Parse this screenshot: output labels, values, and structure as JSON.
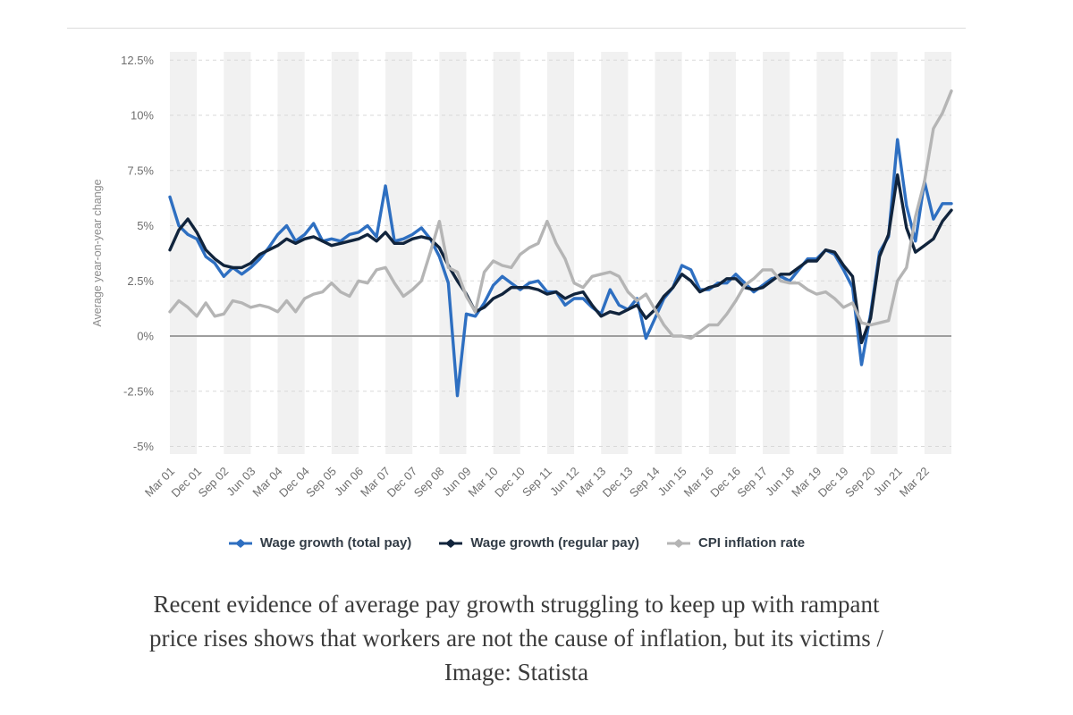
{
  "chart_data": {
    "type": "line",
    "title": "",
    "xlabel": "",
    "ylabel": "Average year-on-year change",
    "ylim": [
      -5,
      12.5
    ],
    "yticks": [
      12.5,
      10,
      7.5,
      5,
      2.5,
      0,
      -2.5,
      -5
    ],
    "ytick_labels": [
      "12.5%",
      "10%",
      "7.5%",
      "5%",
      "2.5%",
      "0%",
      "-2.5%",
      "-5%"
    ],
    "x_tick_labels": [
      "Mar 01",
      "Dec 01",
      "Sep 02",
      "Jun 03",
      "Mar 04",
      "Dec 04",
      "Sep 05",
      "Jun 06",
      "Mar 07",
      "Dec 07",
      "Sep 08",
      "Jun 09",
      "Mar 10",
      "Dec 10",
      "Sep 11",
      "Jun 12",
      "Mar 13",
      "Dec 13",
      "Sep 14",
      "Jun 15",
      "Mar 16",
      "Dec 16",
      "Sep 17",
      "Jun 18",
      "Mar 19",
      "Dec 19",
      "Sep 20",
      "Jun 21",
      "Mar 22"
    ],
    "x_tick_every": 3,
    "categories": [
      "Mar 01",
      "Jun 01",
      "Sep 01",
      "Dec 01",
      "Mar 02",
      "Jun 02",
      "Sep 02",
      "Dec 02",
      "Mar 03",
      "Jun 03",
      "Sep 03",
      "Dec 03",
      "Mar 04",
      "Jun 04",
      "Sep 04",
      "Dec 04",
      "Mar 05",
      "Jun 05",
      "Sep 05",
      "Dec 05",
      "Mar 06",
      "Jun 06",
      "Sep 06",
      "Dec 06",
      "Mar 07",
      "Jun 07",
      "Sep 07",
      "Dec 07",
      "Mar 08",
      "Jun 08",
      "Sep 08",
      "Dec 08",
      "Mar 09",
      "Jun 09",
      "Sep 09",
      "Dec 09",
      "Mar 10",
      "Jun 10",
      "Sep 10",
      "Dec 10",
      "Mar 11",
      "Jun 11",
      "Sep 11",
      "Dec 11",
      "Mar 12",
      "Jun 12",
      "Sep 12",
      "Dec 12",
      "Mar 13",
      "Jun 13",
      "Sep 13",
      "Dec 13",
      "Mar 14",
      "Jun 14",
      "Sep 14",
      "Dec 14",
      "Mar 15",
      "Jun 15",
      "Sep 15",
      "Dec 15",
      "Mar 16",
      "Jun 16",
      "Sep 16",
      "Dec 16",
      "Mar 17",
      "Jun 17",
      "Sep 17",
      "Dec 17",
      "Mar 18",
      "Jun 18",
      "Sep 18",
      "Dec 18",
      "Mar 19",
      "Jun 19",
      "Sep 19",
      "Dec 19",
      "Mar 20",
      "Jun 20",
      "Sep 20",
      "Dec 20",
      "Mar 21",
      "Jun 21",
      "Sep 21",
      "Dec 21",
      "Mar 22",
      "Jun 22",
      "Sep 22",
      "Dec 22"
    ],
    "series": [
      {
        "name": "Wage growth (total pay)",
        "color": "#2e6fc1",
        "values": [
          6.3,
          5.0,
          4.6,
          4.4,
          3.6,
          3.3,
          2.7,
          3.1,
          2.8,
          3.1,
          3.5,
          4.0,
          4.6,
          5.0,
          4.3,
          4.6,
          5.1,
          4.3,
          4.4,
          4.3,
          4.6,
          4.7,
          5.0,
          4.5,
          6.8,
          4.3,
          4.4,
          4.6,
          4.9,
          4.4,
          3.6,
          2.4,
          -2.7,
          1.0,
          0.9,
          1.5,
          2.3,
          2.7,
          2.4,
          2.1,
          2.4,
          2.5,
          2.0,
          2.0,
          1.4,
          1.7,
          1.7,
          1.3,
          1.0,
          2.1,
          1.4,
          1.2,
          1.7,
          -0.1,
          0.8,
          1.7,
          2.2,
          3.2,
          3.0,
          2.1,
          2.1,
          2.4,
          2.4,
          2.8,
          2.4,
          2.0,
          2.3,
          2.6,
          2.7,
          2.5,
          3.0,
          3.5,
          3.5,
          3.9,
          3.7,
          3.0,
          2.2,
          -1.3,
          1.0,
          3.8,
          4.5,
          8.9,
          5.9,
          4.3,
          7.0,
          5.3,
          6.0,
          6.0
        ]
      },
      {
        "name": "Wage growth (regular pay)",
        "color": "#11243c",
        "values": [
          3.9,
          4.8,
          5.3,
          4.7,
          3.9,
          3.5,
          3.2,
          3.1,
          3.1,
          3.3,
          3.7,
          3.9,
          4.1,
          4.4,
          4.2,
          4.4,
          4.5,
          4.3,
          4.1,
          4.2,
          4.3,
          4.4,
          4.6,
          4.3,
          4.7,
          4.2,
          4.2,
          4.4,
          4.5,
          4.4,
          4.0,
          3.2,
          2.5,
          1.9,
          1.1,
          1.3,
          1.7,
          1.9,
          2.2,
          2.2,
          2.2,
          2.1,
          1.9,
          2.0,
          1.7,
          1.9,
          2.0,
          1.4,
          0.9,
          1.1,
          1.0,
          1.2,
          1.4,
          0.8,
          1.2,
          1.8,
          2.2,
          2.8,
          2.5,
          2.0,
          2.2,
          2.3,
          2.6,
          2.6,
          2.2,
          2.1,
          2.2,
          2.5,
          2.8,
          2.8,
          3.1,
          3.4,
          3.4,
          3.9,
          3.8,
          3.2,
          2.7,
          -0.3,
          0.8,
          3.6,
          4.6,
          7.3,
          4.9,
          3.8,
          4.1,
          4.4,
          5.2,
          5.7
        ]
      },
      {
        "name": "CPI inflation rate",
        "color": "#b5b5b5",
        "values": [
          1.1,
          1.6,
          1.3,
          0.9,
          1.5,
          0.9,
          1.0,
          1.6,
          1.5,
          1.3,
          1.4,
          1.3,
          1.1,
          1.6,
          1.1,
          1.7,
          1.9,
          2.0,
          2.4,
          2.0,
          1.8,
          2.5,
          2.4,
          3.0,
          3.1,
          2.4,
          1.8,
          2.1,
          2.5,
          3.8,
          5.2,
          3.1,
          2.9,
          1.8,
          1.1,
          2.9,
          3.4,
          3.2,
          3.1,
          3.7,
          4.0,
          4.2,
          5.2,
          4.2,
          3.5,
          2.4,
          2.2,
          2.7,
          2.8,
          2.9,
          2.7,
          2.0,
          1.6,
          1.9,
          1.2,
          0.5,
          0.0,
          0.0,
          -0.1,
          0.2,
          0.5,
          0.5,
          1.0,
          1.6,
          2.3,
          2.6,
          3.0,
          3.0,
          2.5,
          2.4,
          2.4,
          2.1,
          1.9,
          2.0,
          1.7,
          1.3,
          1.5,
          0.6,
          0.5,
          0.6,
          0.7,
          2.5,
          3.1,
          5.4,
          7.0,
          9.4,
          10.1,
          11.1
        ]
      }
    ],
    "grid": "horizontal-dashed",
    "gridline_color": "#d9d9d9",
    "zero_line_color": "#9e9e9e",
    "band_color": "#f1f1f1",
    "background_bands": "alternating-vertical",
    "axis_text_color": "#6e6e6e",
    "ylabel_color": "#8c8c8c",
    "legend_position": "bottom"
  },
  "caption": {
    "lines": [
      "Recent evidence of average pay growth struggling to keep up with rampant",
      "price rises shows that workers are not the cause of inflation, but its victims /",
      "Image: Statista"
    ]
  }
}
